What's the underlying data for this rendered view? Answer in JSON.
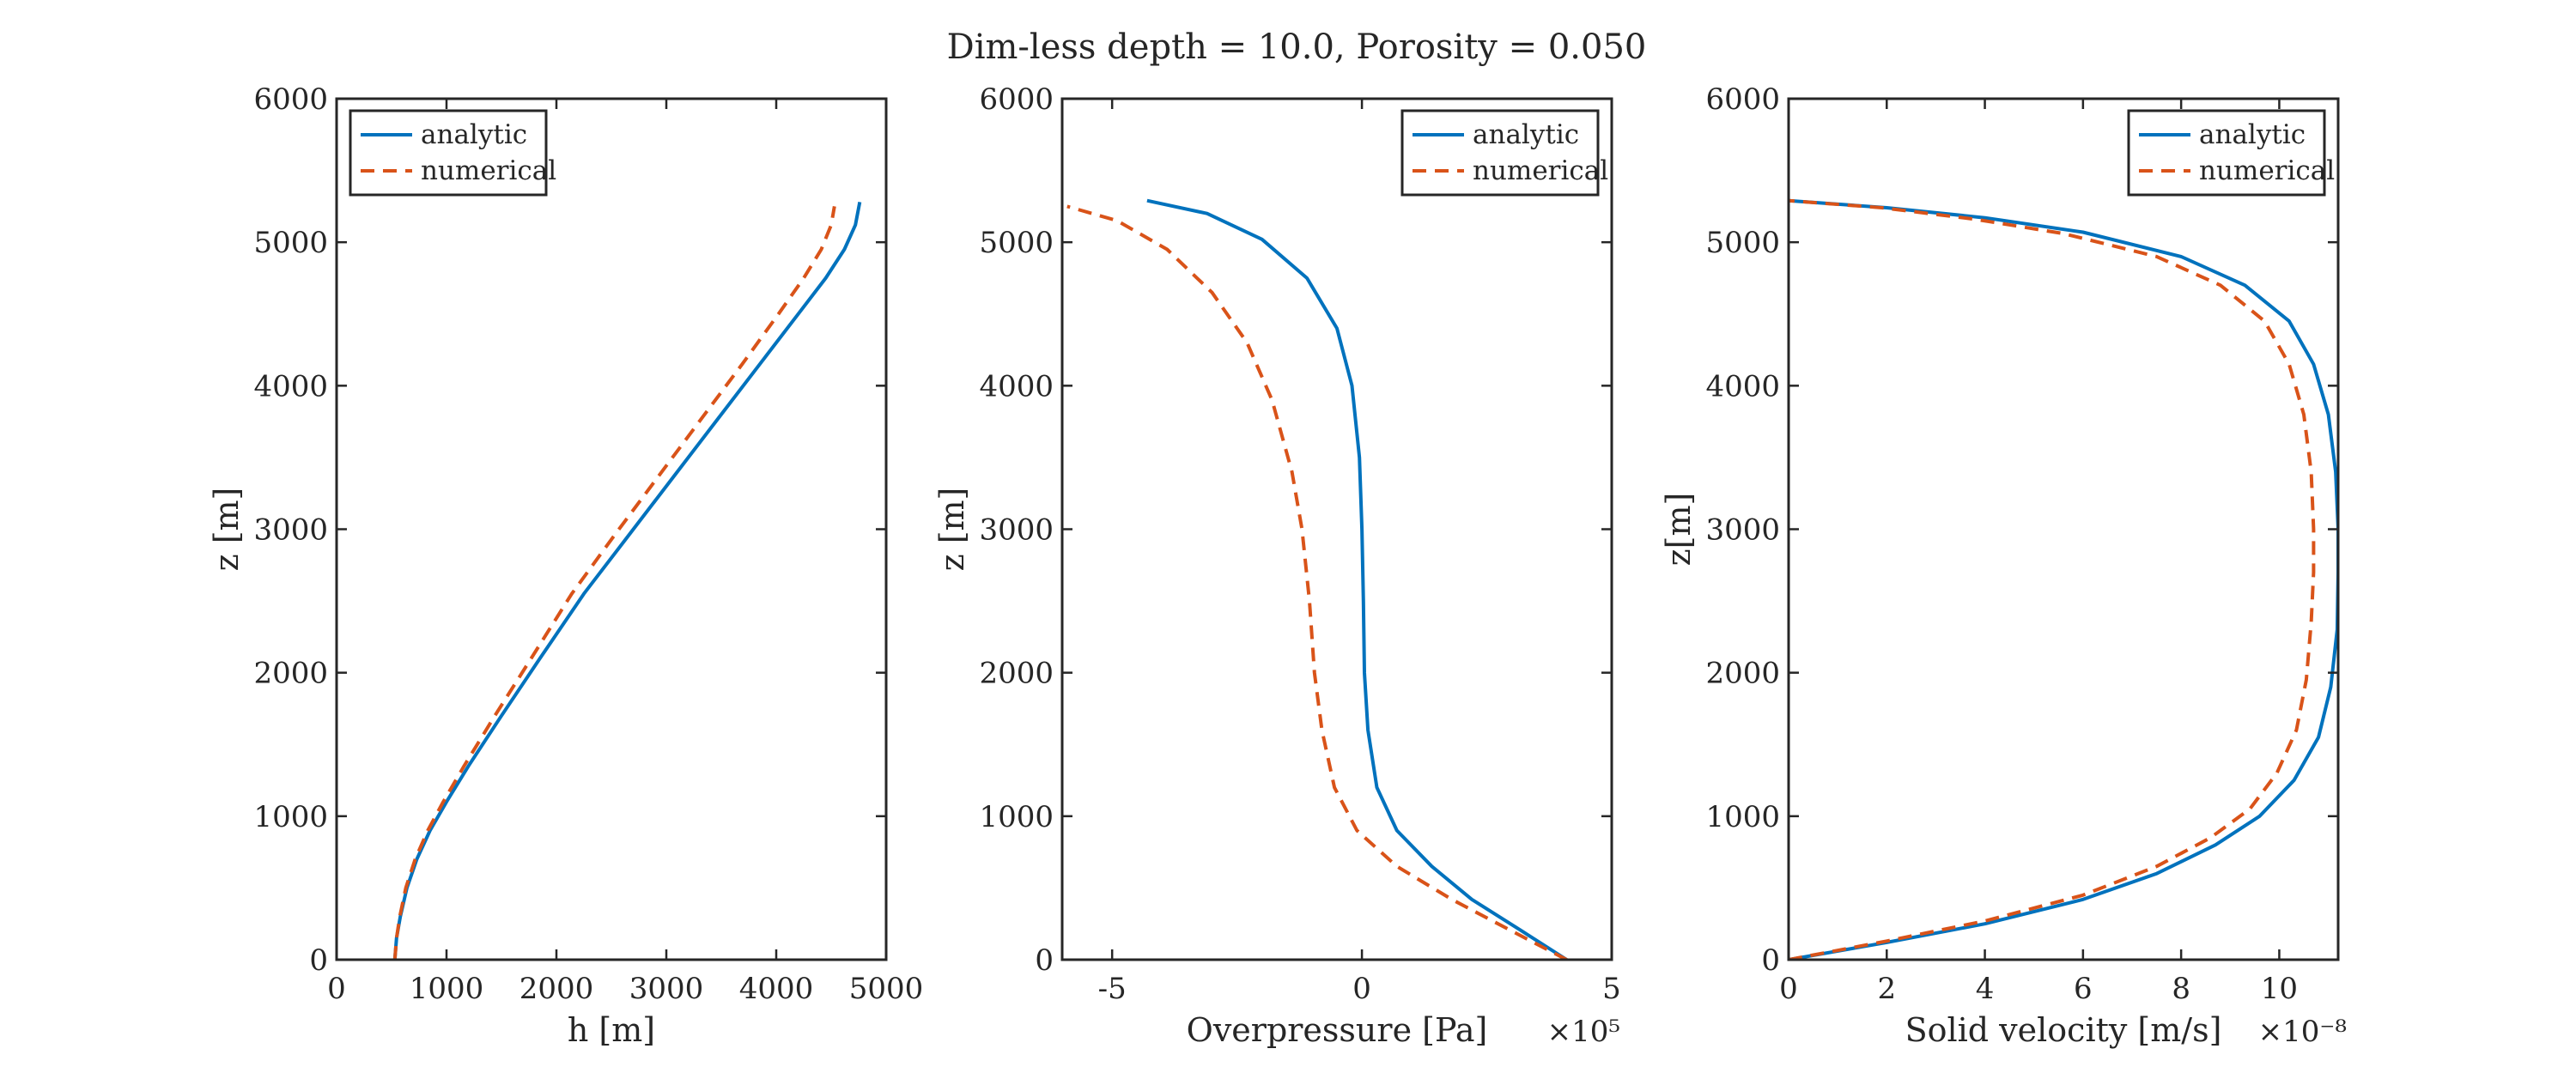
{
  "figure": {
    "title": "Dim-less depth = 10.0, Porosity = 0.050"
  },
  "colors": {
    "analytic": "#0072BD",
    "numerical": "#D95319",
    "axes": "#262626",
    "background": "#ffffff"
  },
  "chart_data": [
    {
      "type": "line",
      "xlabel": "h [m]",
      "ylabel": "z [m]",
      "xlim": [
        0,
        5000
      ],
      "ylim": [
        0,
        6000
      ],
      "xticks": [
        0,
        1000,
        2000,
        3000,
        4000,
        5000
      ],
      "xtick_labels": [
        "0",
        "1000",
        "2000",
        "3000",
        "4000",
        "5000"
      ],
      "yticks": [
        0,
        1000,
        2000,
        3000,
        4000,
        5000,
        6000
      ],
      "ytick_labels": [
        "0",
        "1000",
        "2000",
        "3000",
        "4000",
        "5000",
        "6000"
      ],
      "exponent_label": "",
      "legend_position": "top-left",
      "legend": [
        "analytic",
        "numerical"
      ],
      "series": [
        {
          "name": "analytic",
          "style": "solid",
          "points": [
            [
              530,
              0
            ],
            [
              545,
              150
            ],
            [
              580,
              300
            ],
            [
              640,
              500
            ],
            [
              730,
              700
            ],
            [
              850,
              900
            ],
            [
              1000,
              1100
            ],
            [
              1200,
              1350
            ],
            [
              1500,
              1700
            ],
            [
              1850,
              2100
            ],
            [
              2250,
              2550
            ],
            [
              2650,
              2950
            ],
            [
              3050,
              3350
            ],
            [
              3450,
              3750
            ],
            [
              3850,
              4150
            ],
            [
              4200,
              4500
            ],
            [
              4450,
              4750
            ],
            [
              4620,
              4950
            ],
            [
              4720,
              5120
            ],
            [
              4760,
              5280
            ]
          ]
        },
        {
          "name": "numerical",
          "style": "dashed",
          "points": [
            [
              530,
              0
            ],
            [
              545,
              150
            ],
            [
              575,
              300
            ],
            [
              630,
              500
            ],
            [
              715,
              700
            ],
            [
              830,
              900
            ],
            [
              970,
              1100
            ],
            [
              1160,
              1350
            ],
            [
              1440,
              1700
            ],
            [
              1770,
              2100
            ],
            [
              2140,
              2550
            ],
            [
              2520,
              2950
            ],
            [
              2910,
              3350
            ],
            [
              3300,
              3750
            ],
            [
              3690,
              4150
            ],
            [
              4020,
              4500
            ],
            [
              4250,
              4750
            ],
            [
              4410,
              4950
            ],
            [
              4500,
              5120
            ],
            [
              4530,
              5250
            ]
          ]
        }
      ]
    },
    {
      "type": "line",
      "xlabel": "Overpressure [Pa]",
      "ylabel": "z [m]",
      "xlim": [
        -6,
        5
      ],
      "ylim": [
        0,
        6000
      ],
      "xticks": [
        -5,
        0,
        5
      ],
      "xtick_labels": [
        "-5",
        "0",
        "5"
      ],
      "yticks": [
        0,
        1000,
        2000,
        3000,
        4000,
        5000,
        6000
      ],
      "ytick_labels": [
        "0",
        "1000",
        "2000",
        "3000",
        "4000",
        "5000",
        "6000"
      ],
      "exponent_label": "×10⁵",
      "legend_position": "top-right",
      "legend": [
        "analytic",
        "numerical"
      ],
      "series": [
        {
          "name": "analytic",
          "style": "solid",
          "points": [
            [
              4.1,
              0
            ],
            [
              3.2,
              200
            ],
            [
              2.2,
              420
            ],
            [
              1.4,
              650
            ],
            [
              0.7,
              900
            ],
            [
              0.3,
              1200
            ],
            [
              0.12,
              1600
            ],
            [
              0.05,
              2000
            ],
            [
              0.03,
              2500
            ],
            [
              0.0,
              3000
            ],
            [
              -0.05,
              3500
            ],
            [
              -0.2,
              4000
            ],
            [
              -0.5,
              4400
            ],
            [
              -1.1,
              4750
            ],
            [
              -2.0,
              5020
            ],
            [
              -3.1,
              5200
            ],
            [
              -4.3,
              5290
            ]
          ]
        },
        {
          "name": "numerical",
          "style": "dashed",
          "points": [
            [
              4.1,
              0
            ],
            [
              3.0,
              200
            ],
            [
              1.8,
              420
            ],
            [
              0.7,
              650
            ],
            [
              -0.1,
              900
            ],
            [
              -0.55,
              1200
            ],
            [
              -0.8,
              1600
            ],
            [
              -0.95,
              2000
            ],
            [
              -1.05,
              2500
            ],
            [
              -1.2,
              3000
            ],
            [
              -1.4,
              3400
            ],
            [
              -1.8,
              3900
            ],
            [
              -2.3,
              4300
            ],
            [
              -3.0,
              4650
            ],
            [
              -3.9,
              4950
            ],
            [
              -4.9,
              5150
            ],
            [
              -5.9,
              5250
            ]
          ]
        }
      ]
    },
    {
      "type": "line",
      "xlabel": "Solid velocity [m/s]",
      "ylabel": "z[m]",
      "xlim": [
        0,
        11.2
      ],
      "ylim": [
        0,
        6000
      ],
      "xticks": [
        0,
        2,
        4,
        6,
        8,
        10
      ],
      "xtick_labels": [
        "0",
        "2",
        "4",
        "6",
        "8",
        "10"
      ],
      "yticks": [
        0,
        1000,
        2000,
        3000,
        4000,
        5000,
        6000
      ],
      "ytick_labels": [
        "0",
        "1000",
        "2000",
        "3000",
        "4000",
        "5000",
        "6000"
      ],
      "exponent_label": "×10⁻⁸",
      "legend_position": "top-right",
      "legend": [
        "analytic",
        "numerical"
      ],
      "series": [
        {
          "name": "analytic",
          "style": "solid",
          "points": [
            [
              0,
              0
            ],
            [
              2.0,
              120
            ],
            [
              4.0,
              250
            ],
            [
              6.0,
              420
            ],
            [
              7.5,
              600
            ],
            [
              8.7,
              800
            ],
            [
              9.6,
              1000
            ],
            [
              10.3,
              1250
            ],
            [
              10.8,
              1550
            ],
            [
              11.05,
              1900
            ],
            [
              11.18,
              2300
            ],
            [
              11.2,
              2700
            ],
            [
              11.2,
              3000
            ],
            [
              11.15,
              3400
            ],
            [
              11.0,
              3800
            ],
            [
              10.7,
              4150
            ],
            [
              10.2,
              4450
            ],
            [
              9.3,
              4700
            ],
            [
              8.0,
              4900
            ],
            [
              6.0,
              5070
            ],
            [
              4.0,
              5170
            ],
            [
              2.0,
              5240
            ],
            [
              0,
              5290
            ]
          ]
        },
        {
          "name": "numerical",
          "style": "dashed",
          "points": [
            [
              0,
              0
            ],
            [
              2.0,
              130
            ],
            [
              4.0,
              270
            ],
            [
              6.0,
              450
            ],
            [
              7.5,
              650
            ],
            [
              8.6,
              850
            ],
            [
              9.4,
              1050
            ],
            [
              9.95,
              1300
            ],
            [
              10.35,
              1600
            ],
            [
              10.55,
              1950
            ],
            [
              10.65,
              2350
            ],
            [
              10.7,
              2700
            ],
            [
              10.7,
              3000
            ],
            [
              10.65,
              3400
            ],
            [
              10.5,
              3800
            ],
            [
              10.2,
              4150
            ],
            [
              9.7,
              4450
            ],
            [
              8.8,
              4700
            ],
            [
              7.5,
              4900
            ],
            [
              5.6,
              5060
            ],
            [
              3.8,
              5160
            ],
            [
              1.9,
              5240
            ],
            [
              0,
              5290
            ]
          ]
        }
      ]
    }
  ]
}
